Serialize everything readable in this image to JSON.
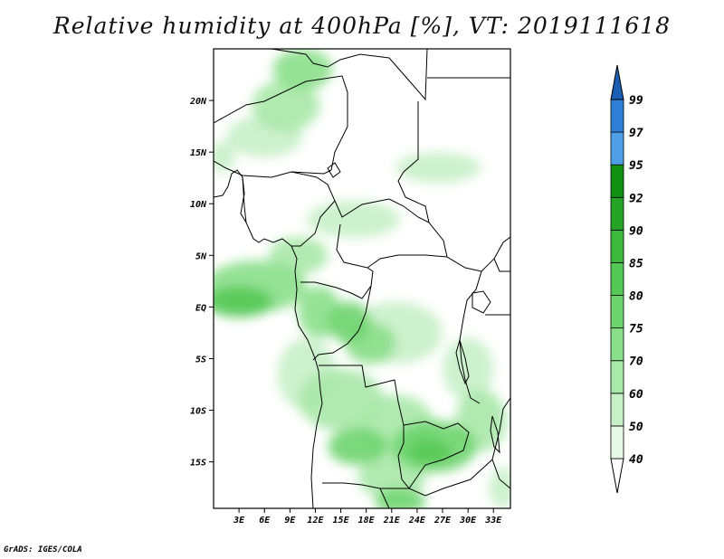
{
  "title": "Relative humidity at 400hPa [%], VT: 2019111618",
  "credit": "GrADS: IGES/COLA",
  "map": {
    "variable": "Relative humidity",
    "level": "400hPa",
    "units": "%",
    "valid_time": "2019111618",
    "lon_range": [
      0,
      35
    ],
    "lat_range": [
      -19.5,
      25
    ],
    "lat_ticks": [
      {
        "value": 20,
        "label": "20N"
      },
      {
        "value": 15,
        "label": "15N"
      },
      {
        "value": 10,
        "label": "10N"
      },
      {
        "value": 5,
        "label": "5N"
      },
      {
        "value": 0,
        "label": "EQ"
      },
      {
        "value": -5,
        "label": "5S"
      },
      {
        "value": -10,
        "label": "10S"
      },
      {
        "value": -15,
        "label": "15S"
      }
    ],
    "lon_ticks": [
      {
        "value": 3,
        "label": "3E"
      },
      {
        "value": 6,
        "label": "6E"
      },
      {
        "value": 9,
        "label": "9E"
      },
      {
        "value": 12,
        "label": "12E"
      },
      {
        "value": 15,
        "label": "15E"
      },
      {
        "value": 18,
        "label": "18E"
      },
      {
        "value": 21,
        "label": "21E"
      },
      {
        "value": 24,
        "label": "24E"
      },
      {
        "value": 27,
        "label": "27E"
      },
      {
        "value": 30,
        "label": "30E"
      },
      {
        "value": 33,
        "label": "33E"
      }
    ]
  },
  "colorbar": {
    "levels": [
      40,
      50,
      60,
      70,
      75,
      80,
      85,
      90,
      92,
      95,
      97,
      99
    ],
    "colors": [
      "#ffffff",
      "#e6f9e6",
      "#c8f0c8",
      "#a8e8a8",
      "#8adf8a",
      "#6ed46e",
      "#55c955",
      "#3cb83c",
      "#26a426",
      "#129012",
      "#4f9fe8",
      "#2f7fd6",
      "#1a5fb4"
    ]
  },
  "humidity_blobs": [
    {
      "lon": 10.5,
      "lat": 23.0,
      "r_lon": 3.5,
      "r_lat": 2.0,
      "value": 70
    },
    {
      "lon": 8.5,
      "lat": 19.5,
      "r_lon": 4.0,
      "r_lat": 2.5,
      "value": 60
    },
    {
      "lon": 6.0,
      "lat": 16.5,
      "r_lon": 4.5,
      "r_lat": 2.0,
      "value": 55
    },
    {
      "lon": 26.5,
      "lat": 13.5,
      "r_lon": 5.0,
      "r_lat": 1.5,
      "value": 55
    },
    {
      "lon": 16.5,
      "lat": 8.5,
      "r_lon": 5.5,
      "r_lat": 1.8,
      "value": 55
    },
    {
      "lon": 10.0,
      "lat": 5.0,
      "r_lon": 3.5,
      "r_lat": 1.8,
      "value": 60
    },
    {
      "lon": 5.0,
      "lat": 2.0,
      "r_lon": 6.0,
      "r_lat": 2.5,
      "value": 70
    },
    {
      "lon": 3.0,
      "lat": 0.5,
      "r_lon": 4.0,
      "r_lat": 1.5,
      "value": 80
    },
    {
      "lon": 12.5,
      "lat": -0.5,
      "r_lon": 2.5,
      "r_lat": 2.5,
      "value": 70
    },
    {
      "lon": 16.0,
      "lat": -1.5,
      "r_lon": 2.5,
      "r_lat": 2.0,
      "value": 78
    },
    {
      "lon": 18.5,
      "lat": -3.5,
      "r_lon": 3.0,
      "r_lat": 2.0,
      "value": 70
    },
    {
      "lon": 21.5,
      "lat": -2.5,
      "r_lon": 5.5,
      "r_lat": 3.0,
      "value": 55
    },
    {
      "lon": 11.0,
      "lat": -6.5,
      "r_lon": 3.5,
      "r_lat": 3.5,
      "value": 55
    },
    {
      "lon": 15.0,
      "lat": -9.0,
      "r_lon": 5.0,
      "r_lat": 3.0,
      "value": 60
    },
    {
      "lon": 21.5,
      "lat": -11.5,
      "r_lon": 4.5,
      "r_lat": 3.0,
      "value": 65
    },
    {
      "lon": 17.0,
      "lat": -13.5,
      "r_lon": 3.5,
      "r_lat": 1.8,
      "value": 75
    },
    {
      "lon": 26.0,
      "lat": -13.5,
      "r_lon": 5.0,
      "r_lat": 2.5,
      "value": 75
    },
    {
      "lon": 25.5,
      "lat": -14.0,
      "r_lon": 2.5,
      "r_lat": 1.2,
      "value": 82
    },
    {
      "lon": 31.5,
      "lat": -11.0,
      "r_lon": 3.0,
      "r_lat": 3.0,
      "value": 65
    },
    {
      "lon": 30.0,
      "lat": -6.0,
      "r_lon": 3.0,
      "r_lat": 3.0,
      "value": 55
    },
    {
      "lon": 21.0,
      "lat": -16.5,
      "r_lon": 4.0,
      "r_lat": 2.0,
      "value": 60
    },
    {
      "lon": 22.0,
      "lat": -18.8,
      "r_lon": 3.0,
      "r_lat": 1.2,
      "value": 78
    },
    {
      "lon": 34.0,
      "lat": -17.5,
      "r_lon": 1.5,
      "r_lat": 2.0,
      "value": 55
    },
    {
      "lon": 1.0,
      "lat": 14.5,
      "r_lon": 1.5,
      "r_lat": 1.5,
      "value": 55
    }
  ]
}
